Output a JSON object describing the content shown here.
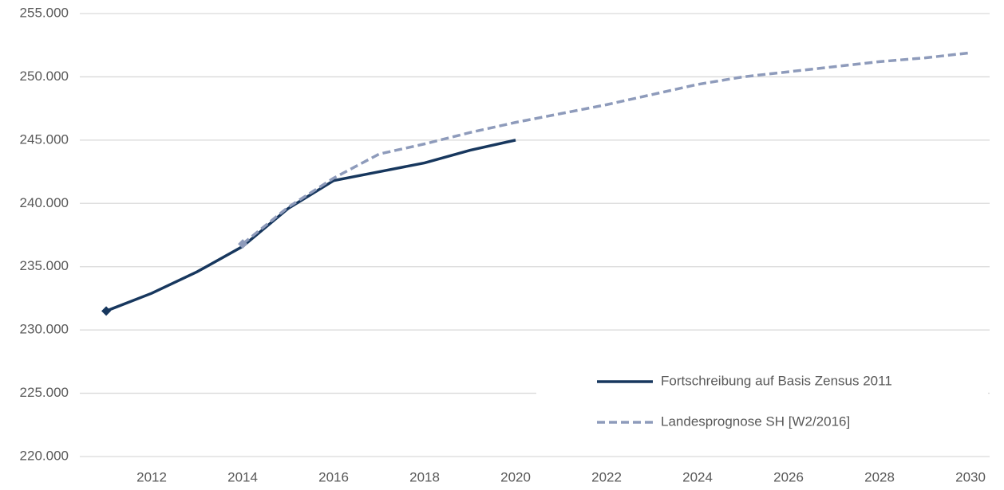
{
  "chart_data": {
    "type": "line",
    "x": [
      2011,
      2012,
      2013,
      2014,
      2015,
      2016,
      2017,
      2018,
      2019,
      2020,
      2021,
      2022,
      2023,
      2024,
      2025,
      2026,
      2027,
      2028,
      2029,
      2030
    ],
    "series": [
      {
        "name": "Fortschreibung auf Basis Zensus 2011",
        "color": "#17375e",
        "dash": false,
        "values": [
          231500,
          232900,
          234600,
          236600,
          239600,
          241800,
          242500,
          243200,
          244200,
          245000,
          null,
          null,
          null,
          null,
          null,
          null,
          null,
          null,
          null,
          null
        ]
      },
      {
        "name": "Landesprognose SH [W2/2016]",
        "color": "#8e9bbb",
        "dash": true,
        "values": [
          null,
          null,
          null,
          236800,
          239700,
          242000,
          243900,
          244700,
          245600,
          246400,
          247100,
          247800,
          248600,
          249400,
          250000,
          250400,
          250800,
          251200,
          251500,
          251900
        ]
      }
    ],
    "xlim": [
      2010.42,
      2030.42
    ],
    "xticks": [
      2012,
      2014,
      2016,
      2018,
      2020,
      2022,
      2024,
      2026,
      2028,
      2030
    ],
    "ylim": [
      220000,
      255000
    ],
    "yticks": [
      {
        "value": 220000,
        "label": "220.000"
      },
      {
        "value": 225000,
        "label": "225.000"
      },
      {
        "value": 230000,
        "label": "230.000"
      },
      {
        "value": 235000,
        "label": "235.000"
      },
      {
        "value": 240000,
        "label": "240.000"
      },
      {
        "value": 245000,
        "label": "245.000"
      },
      {
        "value": 250000,
        "label": "250.000"
      },
      {
        "value": 255000,
        "label": "255.000"
      }
    ],
    "grid": true,
    "legend": "lower right"
  }
}
